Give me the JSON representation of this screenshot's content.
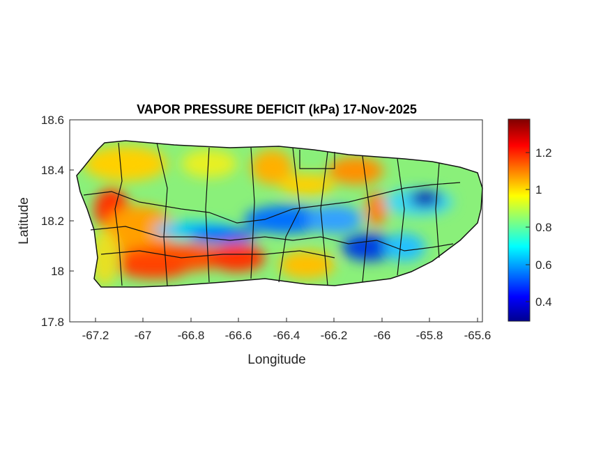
{
  "chart_data": {
    "type": "heatmap",
    "title": "VAPOR PRESSURE DEFICIT (kPa) 17-Nov-2025",
    "xlabel": "Longitude",
    "ylabel": "Latitude",
    "xlim": [
      -67.3,
      -65.58
    ],
    "ylim": [
      17.8,
      18.6
    ],
    "xticks": [
      "-67.2",
      "-67",
      "-66.8",
      "-66.6",
      "-66.4",
      "-66.2",
      "-66",
      "-65.8",
      "-65.6"
    ],
    "yticks": [
      "17.8",
      "18",
      "18.2",
      "18.4",
      "18.6"
    ],
    "colorbar": {
      "colormap": "jet",
      "clim": [
        0.3,
        1.38
      ],
      "ticks": [
        "0.4",
        "0.6",
        "0.8",
        "1",
        "1.2"
      ]
    },
    "grid": false
  }
}
